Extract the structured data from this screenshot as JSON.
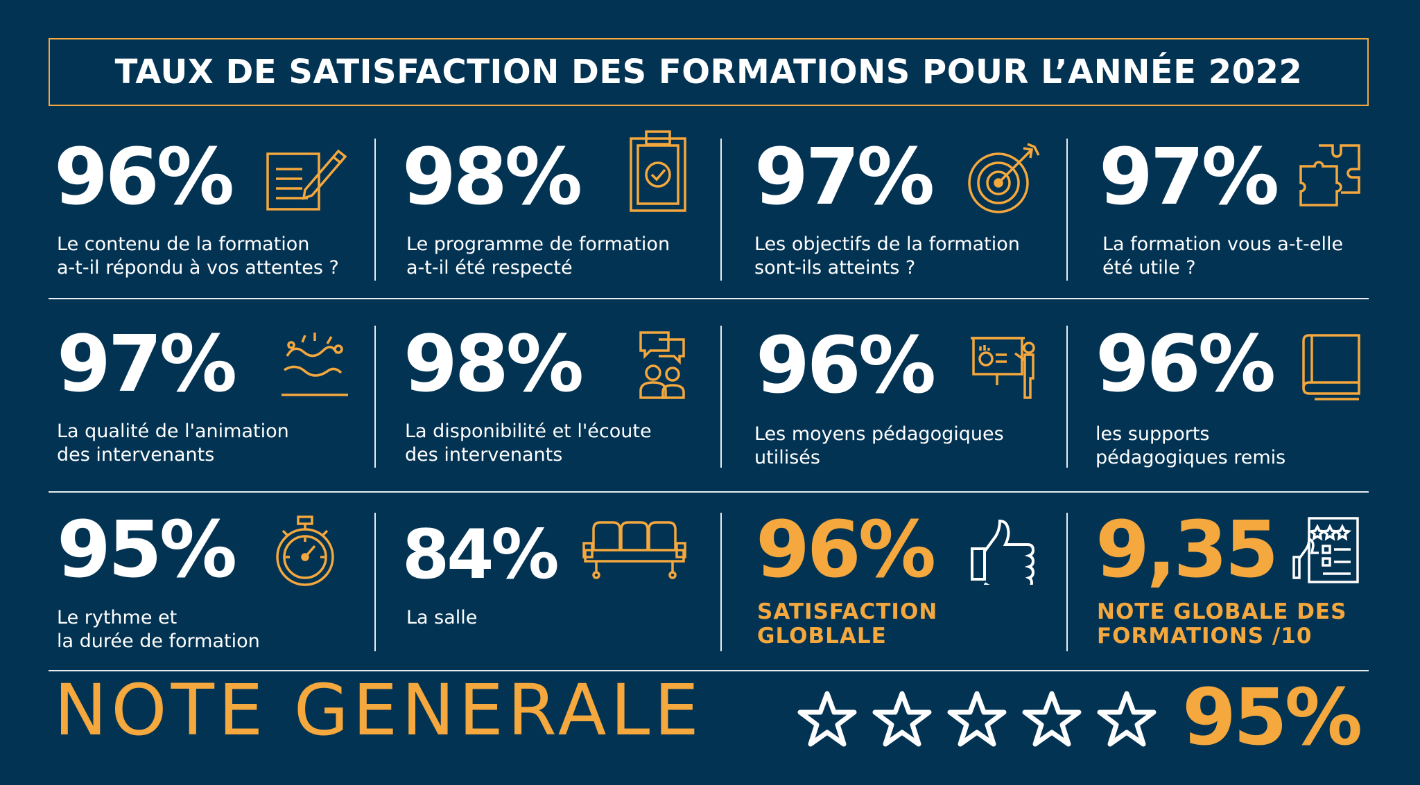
{
  "title": "TAUX DE SATISFACTION DES FORMATIONS POUR L’ANNÉE 2022",
  "colors": {
    "background": "#033353",
    "accent": "#f5a83d",
    "text": "#ffffff"
  },
  "stats": [
    {
      "value": "96%",
      "line1": "Le contenu de la formation",
      "line2": "a-t-il répondu à vos attentes ?",
      "icon": "document-pen-icon"
    },
    {
      "value": "98%",
      "line1": "Le programme de formation",
      "line2": "a-t-il été respecté",
      "icon": "clipboard-check-icon"
    },
    {
      "value": "97%",
      "line1": "Les objectifs de la formation",
      "line2": "sont-ils atteints ?",
      "icon": "target-arrow-icon"
    },
    {
      "value": "97%",
      "line1": "La formation vous a-t-elle",
      "line2": "été utile ?",
      "icon": "puzzle-icon"
    },
    {
      "value": "97%",
      "line1": "La qualité de l'animation",
      "line2": "des intervenants",
      "icon": "animation-icon"
    },
    {
      "value": "98%",
      "line1": "La disponibilité et l'écoute",
      "line2": "des intervenants",
      "icon": "people-chat-icon"
    },
    {
      "value": "96%",
      "line1": "Les moyens pédagogiques",
      "line2": "utilisés",
      "icon": "presentation-icon"
    },
    {
      "value": "96%",
      "line1": "les supports",
      "line2": "pédagogiques remis",
      "icon": "book-icon"
    },
    {
      "value": "95%",
      "line1": "Le rythme et",
      "line2": "la durée de formation",
      "icon": "stopwatch-icon"
    },
    {
      "value": "84%",
      "line1": "La salle",
      "line2": "",
      "icon": "seats-icon"
    },
    {
      "value": "96%",
      "line1": "SATISFACTION",
      "line2": "GLOBLALE",
      "icon": "thumbs-up-icon"
    },
    {
      "value": "9,35",
      "line1": "NOTE GLOBALE DES",
      "line2": "FORMATIONS /10",
      "icon": "rating-review-icon"
    }
  ],
  "footer": {
    "label": "NOTE GENERALE",
    "stars": 5,
    "value": "95%"
  }
}
